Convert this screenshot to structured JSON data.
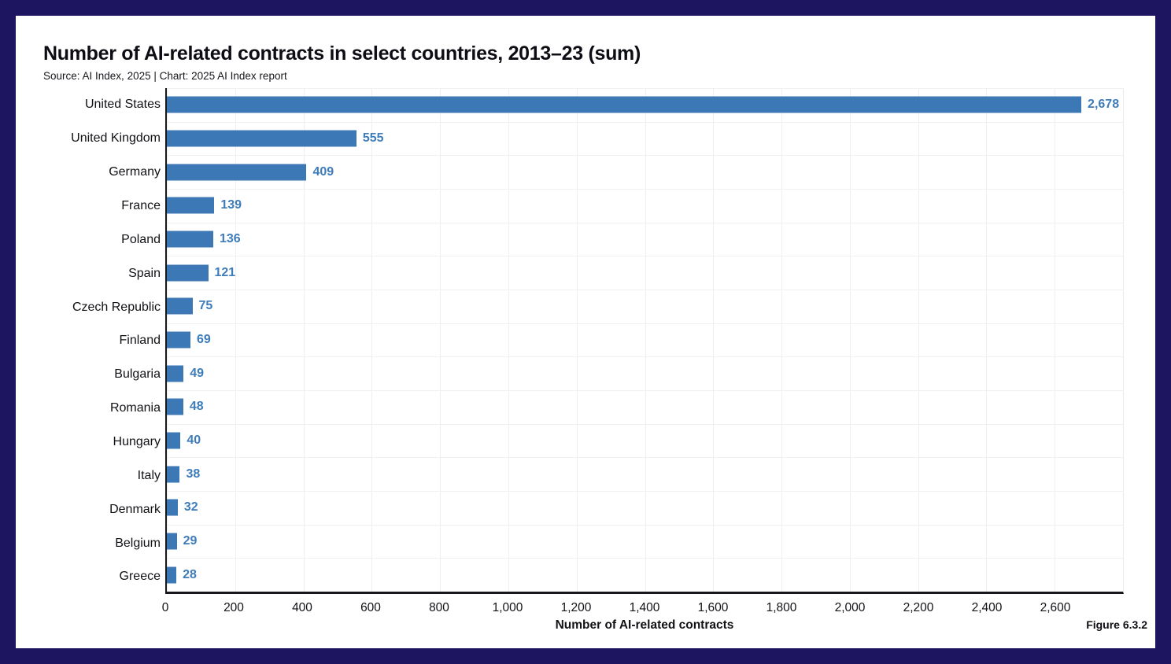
{
  "frame": {
    "border_color": "#1d1560",
    "background_color": "#ffffff"
  },
  "chart_data": {
    "type": "bar",
    "orientation": "horizontal",
    "title": "Number of AI-related contracts in select countries, 2013–23 (sum)",
    "subtitle": "Source: AI Index, 2025 | Chart: 2025 AI Index report",
    "categories": [
      "United States",
      "United Kingdom",
      "Germany",
      "France",
      "Poland",
      "Spain",
      "Czech Republic",
      "Finland",
      "Bulgaria",
      "Romania",
      "Hungary",
      "Italy",
      "Denmark",
      "Belgium",
      "Greece"
    ],
    "values": [
      2678,
      555,
      409,
      139,
      136,
      121,
      75,
      69,
      49,
      48,
      40,
      38,
      32,
      29,
      28
    ],
    "value_labels": [
      "2,678",
      "555",
      "409",
      "139",
      "136",
      "121",
      "75",
      "69",
      "49",
      "48",
      "40",
      "38",
      "32",
      "29",
      "28"
    ],
    "xlabel": "Number of AI-related contracts",
    "ylabel": "",
    "xlim": [
      0,
      2800
    ],
    "xticks": [
      0,
      200,
      400,
      600,
      800,
      1000,
      1200,
      1400,
      1600,
      1800,
      2000,
      2200,
      2400,
      2600
    ],
    "xtick_labels": [
      "0",
      "200",
      "400",
      "600",
      "800",
      "1,000",
      "1,200",
      "1,400",
      "1,600",
      "1,800",
      "2,000",
      "2,200",
      "2,400",
      "2,600"
    ],
    "grid": true,
    "legend": "none",
    "bar_color": "#3c78b5",
    "value_label_color": "#3e7cba"
  },
  "figure_label": "Figure 6.3.2"
}
